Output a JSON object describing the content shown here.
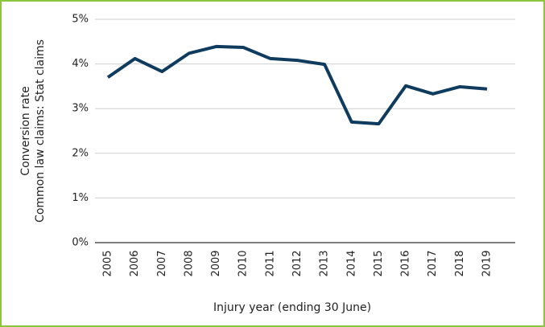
{
  "chart_data": {
    "type": "line",
    "ylabel": [
      "Conversion rate",
      "Common law claims: Stat claims"
    ],
    "xlabel": "Injury year (ending 30 June)",
    "categories": [
      "2005",
      "2006",
      "2007",
      "2008",
      "2009",
      "2010",
      "2011",
      "2012",
      "2013",
      "2014",
      "2015",
      "2016",
      "2017",
      "2018",
      "2019"
    ],
    "series": [
      {
        "color": "#0f3b5f",
        "values": [
          3.7,
          4.12,
          3.83,
          4.24,
          4.39,
          4.37,
          4.12,
          4.08,
          3.99,
          2.7,
          2.66,
          3.51,
          3.33,
          3.49,
          3.44
        ]
      }
    ],
    "ylim": [
      0,
      5
    ],
    "yticks": [
      {
        "value": 0,
        "label": "0%"
      },
      {
        "value": 1,
        "label": "1%"
      },
      {
        "value": 2,
        "label": "2%"
      },
      {
        "value": 3,
        "label": "3%"
      },
      {
        "value": 4,
        "label": "4%"
      },
      {
        "value": 5,
        "label": "5%"
      }
    ],
    "grid": true
  }
}
